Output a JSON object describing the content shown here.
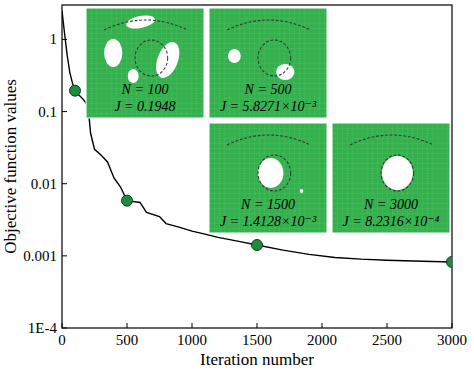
{
  "chart_data": {
    "type": "line",
    "x_label": "Iteration number",
    "y_label": "Objective function values",
    "log": "y",
    "grid": false,
    "xlim": [
      0,
      3000
    ],
    "ylim": [
      0.0001,
      3
    ],
    "xticks": [
      0,
      500,
      1000,
      1500,
      2000,
      2500,
      3000
    ],
    "yticks": [
      {
        "value": 0.0001,
        "label": "1E-4"
      },
      0.001,
      0.01,
      0.1,
      1
    ],
    "series": [
      {
        "type": "line",
        "color": "#000000",
        "line_style": "solid",
        "x": [
          0,
          20,
          40,
          60,
          80,
          100,
          130,
          160,
          200,
          220,
          250,
          300,
          350,
          400,
          450,
          500,
          600,
          650,
          750,
          800,
          900,
          1000,
          1100,
          1200,
          1350,
          1500,
          1700,
          1900,
          2100,
          2300,
          2500,
          2700,
          3000
        ],
        "values": [
          2.5,
          1.2,
          0.6,
          0.35,
          0.25,
          0.1948,
          0.17,
          0.15,
          0.12,
          0.05,
          0.03,
          0.025,
          0.02,
          0.012,
          0.009,
          0.0058271,
          0.0055,
          0.004,
          0.0035,
          0.0028,
          0.0025,
          0.0022,
          0.002,
          0.0018,
          0.0016,
          0.0014128,
          0.0012,
          0.00105,
          0.00095,
          0.0009,
          0.00087,
          0.00085,
          0.00082316
        ]
      },
      {
        "type": "scatter",
        "color": "#1e8c3c",
        "marker": "circle",
        "x": [
          100,
          500,
          1500,
          3000
        ],
        "values": [
          0.1948,
          0.0058271,
          0.0014128,
          0.00082316
        ]
      }
    ],
    "annotations": [
      {
        "n_text": "N = 100",
        "j_text": "J = 0.1948"
      },
      {
        "n_text": "N = 500",
        "j_text": "J = 5.8271×10⁻³"
      },
      {
        "n_text": "N = 1500",
        "j_text": "J = 1.4128×10⁻³"
      },
      {
        "n_text": "N = 3000",
        "j_text": "J = 8.2316×10⁻⁴"
      }
    ]
  }
}
